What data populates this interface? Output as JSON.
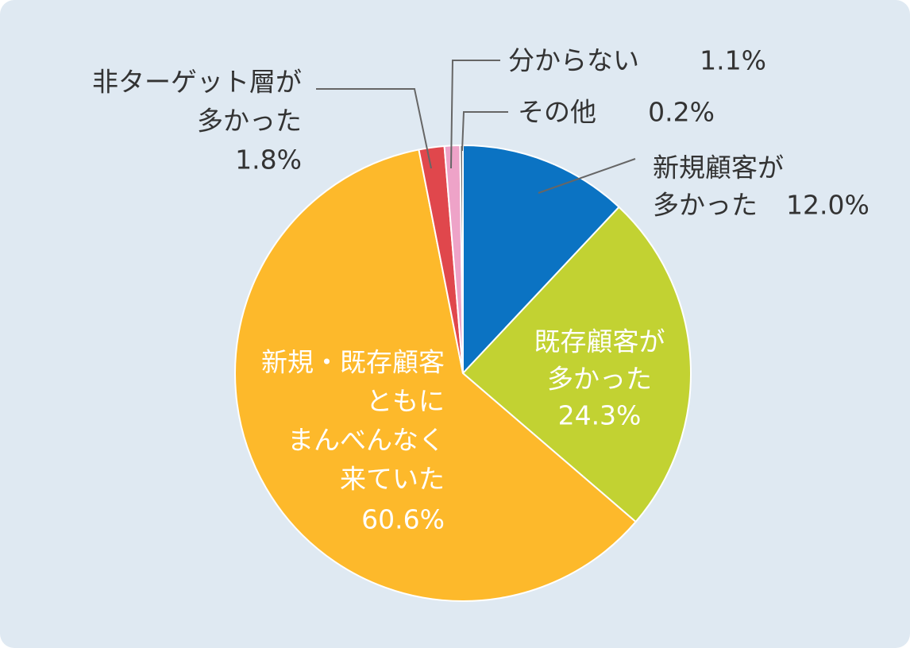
{
  "chart_data": {
    "type": "pie",
    "categories": [
      [
        "新規顧客が",
        "多かった"
      ],
      [
        "既存顧客が",
        "多かった"
      ],
      [
        "新規・既存顧客",
        "ともに",
        "まんべんなく",
        "来ていた"
      ],
      [
        "非ターゲット層が",
        "多かった"
      ],
      [
        "分からない"
      ],
      [
        "その他"
      ]
    ],
    "values": [
      12.0,
      24.3,
      60.6,
      1.8,
      1.1,
      0.2
    ],
    "value_labels": [
      "12.0%",
      "24.3%",
      "60.6%",
      "1.8%",
      "1.1%",
      "0.2%"
    ],
    "colors": [
      "#0b73c3",
      "#c2d232",
      "#fdb92b",
      "#e0474c",
      "#eea3c8",
      "#6b6b6b"
    ]
  }
}
